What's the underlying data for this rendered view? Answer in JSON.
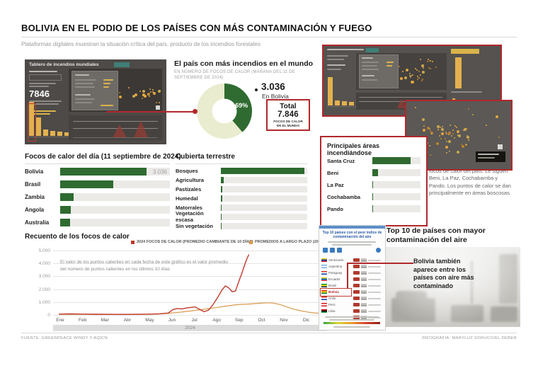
{
  "colors": {
    "accent_red": "#b1282c",
    "dark_green": "#2f6b31",
    "pale_green": "#e9ecce",
    "line_red": "#c0392b",
    "line_orange": "#d99a4e"
  },
  "header": {
    "title": "BOLIVIA EN EL PODIO DE LOS PAÍSES CON MÁS CONTAMINACIÓN Y FUEGO",
    "subtitle": "Plataformas digitales muestran la situación crítica del país, producto de los incendios forestales"
  },
  "dashboard": {
    "title": "Tablero de incendios mundiales",
    "big_number": "7846",
    "mini_bars": [
      48,
      26,
      9,
      7,
      6,
      5
    ]
  },
  "screenshot2": {
    "mini_bars": [
      40,
      7,
      6,
      5,
      4,
      4
    ],
    "tall_bar": 42
  },
  "chart_data": [
    {
      "type": "pie",
      "title": "El país con más incendios en el mundo",
      "subtitle": "EN NÚMERO DE FOCOS DE CALOR (MAÑANA DEL 11 DE SEPTIEMBRE DE 2024)",
      "slices": [
        {
          "label": "Bolivia",
          "value": 3036,
          "pct": 38.69,
          "color": "#2f6b31"
        },
        {
          "label": "Resto del mundo",
          "value": 4810,
          "pct": 61.31,
          "color": "#e9ecce"
        }
      ],
      "pct_label": "38,69%",
      "callout_value": "3.036",
      "callout_caption": "En Bolivia",
      "total_label": "Total",
      "total_value": "7.846",
      "total_caption": "FOCOS DE CALOR EN EL MUNDO",
      "total_caption_line1": "FOCOS DE CALOR",
      "total_caption_line2": "EN EL MUNDO"
    },
    {
      "type": "bar",
      "title": "Focos de calor del día (11 septiembre de 2024)",
      "categories": [
        "Bolivia",
        "Brasil",
        "Zambia",
        "Angola",
        "Australia"
      ],
      "values": [
        3036,
        1850,
        460,
        360,
        350
      ],
      "value_labels": [
        "3.036",
        "",
        "",
        "",
        ""
      ],
      "note": "Solo Bolivia lleva etiqueta de valor; el resto se estima de la longitud de barra"
    },
    {
      "type": "bar",
      "title": "Cubierta terrestre",
      "categories": [
        "Bosques",
        "Agricultura",
        "Pastizales",
        "Humedal",
        "Matorrales",
        "Vegetación escasa",
        "Sin vegetación"
      ],
      "values": [
        97,
        3.5,
        1.5,
        1.5,
        1.2,
        1.2,
        1.2
      ],
      "unit": "porcentaje relativo estimado"
    },
    {
      "type": "bar",
      "title": "Principales áreas incendiándose",
      "categories": [
        "Santa Cruz",
        "Beni",
        "La Paz",
        "Cochabamba",
        "Pando"
      ],
      "values": [
        80,
        12,
        2,
        0.6,
        0.6
      ],
      "unit": "porcentaje relativo estimado",
      "note": "Santa Cruz es la región con más focos de calor del país. Le siguen Beni, La Paz, Cochabamba y Pando. Los puntos de calor se dan principalmente en áreas boscosas."
    },
    {
      "type": "line",
      "title": "Recuento de los focos de calor",
      "annotation": "El valor de los puntos calientes en cada fecha de este gráfico es el valor promedio del número de puntos calientes en los últimos 10 días",
      "x_labels": [
        "Ene",
        "Feb",
        "Mar",
        "Abr",
        "May",
        "Jun",
        "Jul",
        "Ago",
        "Sep",
        "Oct",
        "Nov",
        "Dic"
      ],
      "x_band": "2024",
      "y_ticks": [
        "5.000",
        "4.000",
        "3.000",
        "2.000",
        "1.000",
        "0"
      ],
      "ylim": [
        0,
        5000
      ],
      "series": [
        {
          "name": "2024 FOCOS DE CALOR (PROMEDIO CAMBIANTE DE 10 DÍAS)",
          "color": "#c0392b",
          "points": [
            [
              0,
              60
            ],
            [
              0.5,
              85
            ],
            [
              1,
              65
            ],
            [
              1.5,
              55
            ],
            [
              2,
              50
            ],
            [
              2.5,
              45
            ],
            [
              3,
              42
            ],
            [
              3.5,
              48
            ],
            [
              4,
              60
            ],
            [
              4.5,
              90
            ],
            [
              4.9,
              150
            ],
            [
              5.1,
              420
            ],
            [
              5.3,
              500
            ],
            [
              5.5,
              460
            ],
            [
              5.7,
              540
            ],
            [
              5.9,
              580
            ],
            [
              6.1,
              620
            ],
            [
              6.3,
              430
            ],
            [
              6.5,
              250
            ],
            [
              6.7,
              380
            ],
            [
              6.9,
              800
            ],
            [
              7.1,
              1350
            ],
            [
              7.3,
              1950
            ],
            [
              7.45,
              2250
            ],
            [
              7.6,
              2100
            ],
            [
              7.75,
              1800
            ],
            [
              7.9,
              1850
            ],
            [
              8,
              2350
            ],
            [
              8.1,
              2850
            ],
            [
              8.2,
              3300
            ],
            [
              8.3,
              3850
            ],
            [
              8.4,
              4300
            ],
            [
              8.5,
              4700
            ]
          ]
        },
        {
          "name": "PROMEDIOS A LARGO PLAZO (2001 - 2024)",
          "color": "#d99a4e",
          "points": [
            [
              0,
              45
            ],
            [
              0.5,
              48
            ],
            [
              1,
              42
            ],
            [
              1.5,
              38
            ],
            [
              2,
              35
            ],
            [
              2.5,
              32
            ],
            [
              3,
              32
            ],
            [
              3.5,
              36
            ],
            [
              4,
              48
            ],
            [
              4.5,
              75
            ],
            [
              5,
              135
            ],
            [
              5.5,
              225
            ],
            [
              6,
              330
            ],
            [
              6.5,
              440
            ],
            [
              7,
              560
            ],
            [
              7.5,
              690
            ],
            [
              8,
              800
            ],
            [
              8.5,
              845
            ],
            [
              9,
              905
            ],
            [
              9.3,
              945
            ],
            [
              9.6,
              915
            ],
            [
              9.9,
              800
            ],
            [
              10.2,
              620
            ],
            [
              10.5,
              450
            ],
            [
              10.8,
              330
            ],
            [
              11.1,
              230
            ],
            [
              11.4,
              160
            ],
            [
              11.7,
              115
            ],
            [
              11.9,
              100
            ]
          ]
        }
      ]
    }
  ],
  "top10": {
    "heading": "Top 10 de países con mayor contaminación del aire",
    "screenshot_title": "Top 10 países con el peor índice de contaminación del aire",
    "callout": "Bolivia también aparece entre los países con aire más contaminado",
    "highlight": "Bolivia",
    "left_rows": [
      {
        "name": "Venezuela",
        "flag": [
          "#f7d117",
          "#1b4fa0",
          "#c8102e"
        ]
      },
      {
        "name": "Argentina",
        "flag": [
          "#74acdf",
          "#ffffff",
          "#74acdf"
        ]
      },
      {
        "name": "Paraguay",
        "flag": [
          "#d52b1e",
          "#ffffff",
          "#0038a8"
        ]
      },
      {
        "name": "Ecuador",
        "flag": [
          "#ffd100",
          "#0072ce",
          "#ef3340"
        ]
      },
      {
        "name": "Brasil",
        "flag": [
          "#009739",
          "#fedd00",
          "#012169"
        ]
      },
      {
        "name": "Bolivia",
        "flag": [
          "#d52b1e",
          "#f9e300",
          "#007934"
        ]
      },
      {
        "name": "Chile",
        "flag": [
          "#d52b1e",
          "#ffffff",
          "#0039a6"
        ]
      },
      {
        "name": "Perú",
        "flag": [
          "#d91023",
          "#ffffff",
          "#d91023"
        ]
      },
      {
        "name": "Libia",
        "flag": [
          "#e70013",
          "#000000",
          "#239e46"
        ]
      }
    ],
    "right_rows_count": 10,
    "right_chip_color": "#b03a2e"
  },
  "footer": {
    "source": "FUENTE: GREENPEACE WINDY Y AQICN",
    "credit": "INFOGRAFÍA: MARYLUZ SORUCO/EL DEBER"
  }
}
